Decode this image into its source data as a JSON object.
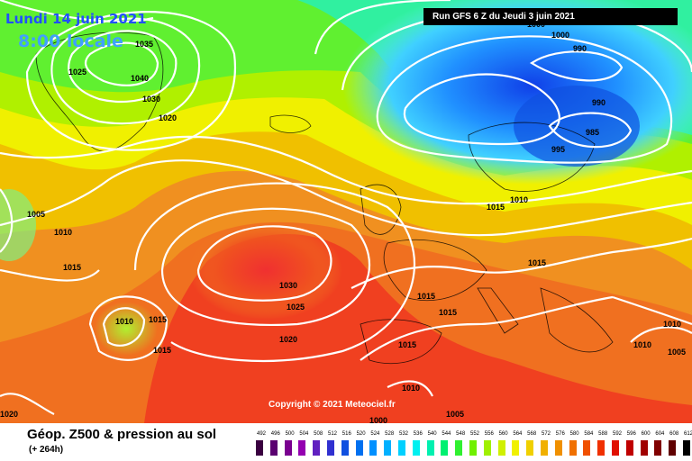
{
  "header": {
    "date": "Lundi 14 juin 2021",
    "time": "8:00 locale",
    "run": "Run GFS 6 Z du Jeudi 3 juin 2021"
  },
  "footer": {
    "title": "Géop. Z500 & pression au sol",
    "lead": "(+ 264h)",
    "copyright": "Copyright © 2021 Meteociel.fr"
  },
  "legend": {
    "values": [
      "492",
      "496",
      "500",
      "504",
      "508",
      "512",
      "516",
      "520",
      "524",
      "528",
      "532",
      "536",
      "540",
      "544",
      "548",
      "552",
      "556",
      "560",
      "564",
      "568",
      "572",
      "576",
      "580",
      "584",
      "588",
      "592",
      "596",
      "600",
      "604",
      "608",
      "612"
    ],
    "colors": [
      "#3a0040",
      "#5a0070",
      "#7a0090",
      "#9400b0",
      "#6020c0",
      "#3030d0",
      "#1050e0",
      "#0070f0",
      "#0090ff",
      "#00b0ff",
      "#00d0ff",
      "#00f0f0",
      "#00f0b0",
      "#00f070",
      "#30f030",
      "#70f000",
      "#a0f000",
      "#d0f000",
      "#f0f000",
      "#f0d000",
      "#f0b000",
      "#f09000",
      "#f07000",
      "#f05000",
      "#f03000",
      "#e01000",
      "#c00000",
      "#a00000",
      "#800000",
      "#600000",
      "#000000"
    ]
  },
  "pressure_labels": [
    "1035",
    "1040",
    "1030",
    "1025",
    "1020",
    "1000",
    "990",
    "990",
    "985",
    "995",
    "1010",
    "1015",
    "1005",
    "1010",
    "1015",
    "1010",
    "1015",
    "1030",
    "1025",
    "1020",
    "1015",
    "1015",
    "1015",
    "1015",
    "1010",
    "1010",
    "1005",
    "1005",
    "1020",
    "1010",
    "1015",
    "1000",
    "1000"
  ]
}
